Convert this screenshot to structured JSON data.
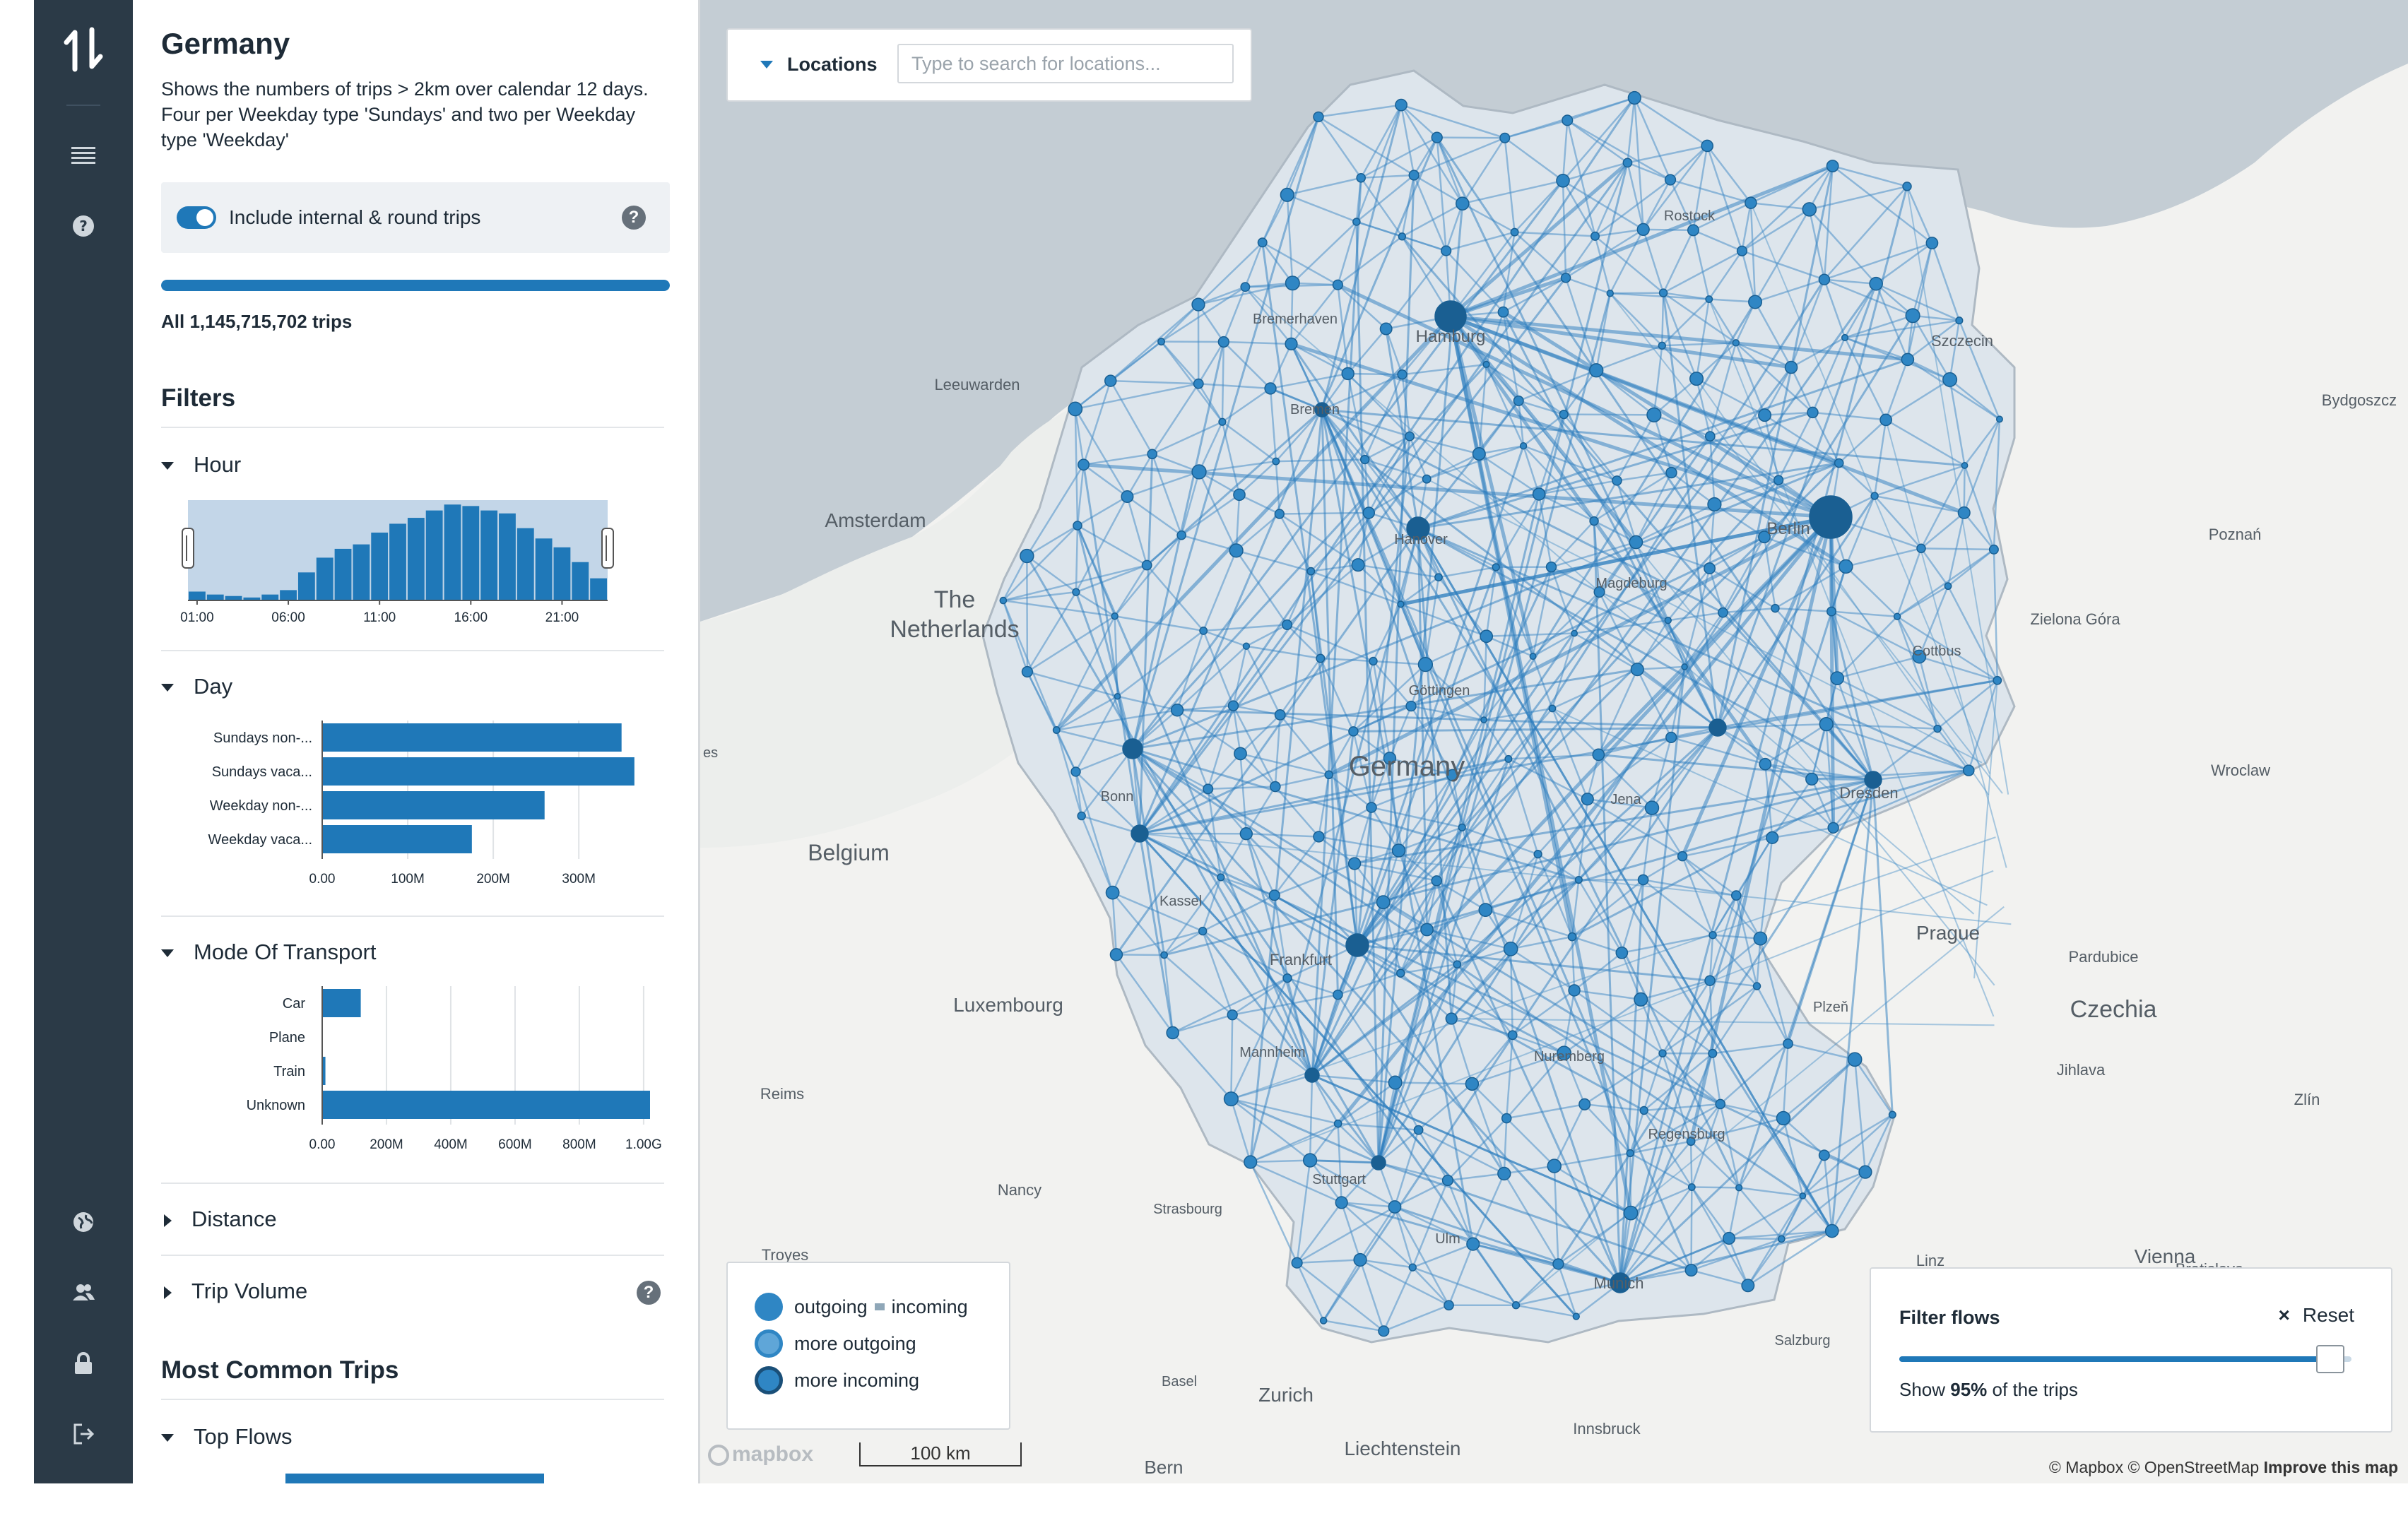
{
  "panel": {
    "title": "Germany",
    "description": "Shows the numbers of trips > 2km over calendar 12 days. Four per Weekday type 'Sundays' and two per Weekday type 'Weekday'",
    "toggle_label": "Include internal & round trips",
    "toggle_on": true,
    "total_trips": "All 1,145,715,702 trips",
    "total_fraction": 1.0,
    "filters_title": "Filters",
    "facets": {
      "hour": "Hour",
      "day": "Day",
      "mode": "Mode Of Transport",
      "distance": "Distance",
      "trip_volume": "Trip Volume"
    },
    "most_common_title": "Most Common Trips",
    "top_flows": "Top Flows"
  },
  "chart_data": [
    {
      "type": "bar",
      "title": "Hour",
      "categories": [
        "01:00",
        "02:00",
        "03:00",
        "04:00",
        "05:00",
        "06:00",
        "07:00",
        "08:00",
        "09:00",
        "10:00",
        "11:00",
        "12:00",
        "13:00",
        "14:00",
        "15:00",
        "16:00",
        "17:00",
        "18:00",
        "19:00",
        "20:00",
        "21:00",
        "22:00",
        "23:00"
      ],
      "tick_labels": [
        "01:00",
        "06:00",
        "11:00",
        "16:00",
        "21:00"
      ],
      "values": [
        6,
        4,
        3,
        2,
        4,
        7,
        19,
        29,
        35,
        38,
        46,
        52,
        56,
        61,
        65,
        64,
        61,
        59,
        49,
        42,
        36,
        26,
        15
      ],
      "ylim": [
        0,
        68
      ],
      "selection": "all hours (01:00–23:00)"
    },
    {
      "type": "bar",
      "orientation": "horizontal",
      "title": "Day",
      "categories": [
        "Sundays non-...",
        "Sundays vaca...",
        "Weekday non-...",
        "Weekday vaca..."
      ],
      "values": [
        350,
        365,
        260,
        175
      ],
      "unit": "M",
      "tick_labels": [
        "0.00",
        "100M",
        "200M",
        "300M"
      ],
      "xlim": [
        0,
        380
      ]
    },
    {
      "type": "bar",
      "orientation": "horizontal",
      "title": "Mode Of Transport",
      "categories": [
        "Car",
        "Plane",
        "Train",
        "Unknown"
      ],
      "values": [
        0.12,
        0.0,
        0.01,
        1.02
      ],
      "unit": "G",
      "tick_labels": [
        "0.00",
        "200M",
        "400M",
        "600M",
        "800M",
        "1.00G"
      ],
      "xlim": [
        0,
        1.02
      ]
    }
  ],
  "map": {
    "search": {
      "label": "Locations",
      "placeholder": "Type to search for locations..."
    },
    "labels": {
      "germany": "Germany",
      "the": "The",
      "netherlands": "Netherlands",
      "belgium": "Belgium",
      "amsterdam": "Amsterdam",
      "czechia": "Czechia",
      "prague": "Prague",
      "luxembourg": "Luxembourg",
      "zurich": "Zurich",
      "liechtenstein": "Liechtenstein",
      "bern": "Bern",
      "vienna": "Vienna",
      "linz": "Linz",
      "bratislava": "Bratislava",
      "wroclaw": "Wroclaw",
      "poznan": "Poznań",
      "szczecin": "Szczecin",
      "bydgoszcz": "Bydgoszcz",
      "zielona_gora": "Zielona Góra",
      "leeuwarden": "Leeuwarden",
      "reims": "Reims",
      "nancy": "Nancy",
      "troyes": "Troyes",
      "pardubice": "Pardubice",
      "jihlava": "Jihlava",
      "zlin": "Zlín",
      "plzen": "Plzeň",
      "innsbruck": "Innsbruck",
      "hamburg": "Hamburg",
      "berlin": "Berlin",
      "bremerhaven": "Bremerhaven",
      "rostock": "Rostock",
      "bremen": "Bremen",
      "hanover": "Hanover",
      "magdeburg": "Magdeburg",
      "cottbus": "Cottbus",
      "dresden": "Dresden",
      "gottingen": "Göttingen",
      "jena": "Jena",
      "bonn": "Bonn",
      "kassel": "Kassel",
      "frankfurt": "Frankfurt",
      "mannheim": "Mannheim",
      "nuremberg": "Nuremberg",
      "regensburg": "Regensburg",
      "stuttgart": "Stuttgart",
      "ulm": "Ulm",
      "munich": "Munich",
      "strasbourg": "Strasbourg",
      "basel": "Basel",
      "salzburg": "Salzburg",
      "es": "es"
    },
    "legend": {
      "outgoing": "outgoing",
      "incoming": "incoming",
      "more_outgoing": "more outgoing",
      "more_incoming": "more incoming"
    },
    "filter_flows": {
      "title": "Filter flows",
      "reset": "Reset",
      "note_prefix": "Show ",
      "percent": "95%",
      "note_suffix": " of the trips",
      "value": 0.95
    },
    "scale": "100 km",
    "logo": "mapbox",
    "attribution": "© Mapbox © OpenStreetMap",
    "improve": "Improve this map"
  },
  "colors": {
    "accent": "#1f78b8",
    "rail": "#2b3a47",
    "flow": "#4a90c8",
    "node_outgoing": "#2f86c4",
    "node_incoming": "#1a5f92"
  },
  "icons": [
    "app-logo-icon",
    "menu-icon",
    "help-icon",
    "globe-icon",
    "users-icon",
    "lock-icon",
    "logout-icon",
    "close-icon",
    "chevron-down-icon"
  ]
}
